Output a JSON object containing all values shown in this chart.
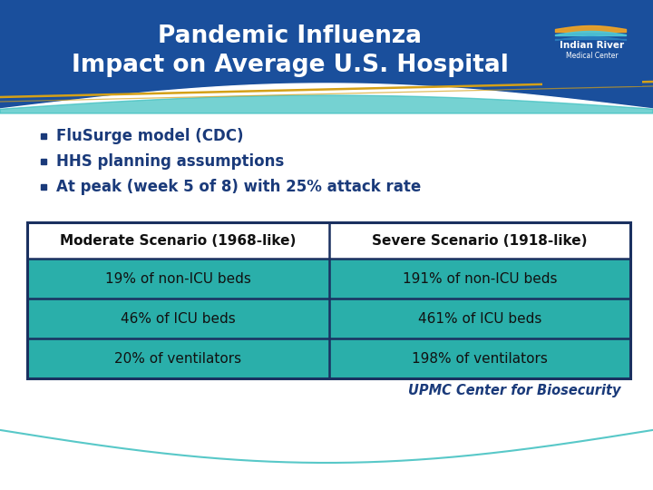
{
  "title_line1": "Pandemic Influenza",
  "title_line2": "Impact on Average U.S. Hospital",
  "title_bg_color": "#1A4F9C",
  "title_text_color": "#FFFFFF",
  "body_bg_color": "#FFFFFF",
  "wave_teal": "#3BBFBF",
  "wave_accent_color": "#D4A017",
  "bullets": [
    "FluSurge model (CDC)",
    "HHS planning assumptions",
    "At peak (week 5 of 8) with 25% attack rate"
  ],
  "bullet_text_color": "#1A3A7A",
  "table_header_row": [
    "Moderate Scenario (1968-like)",
    "Severe Scenario (1918-like)"
  ],
  "table_data_rows": [
    [
      "19% of non-ICU beds",
      "191% of non-ICU beds"
    ],
    [
      "46% of ICU beds",
      "461% of ICU beds"
    ],
    [
      "20% of ventilators",
      "198% of ventilators"
    ]
  ],
  "table_header_bg": "#FFFFFF",
  "table_cell_bg": "#2AAFAA",
  "table_border_color": "#1A3060",
  "table_header_text_color": "#111111",
  "table_cell_text_color": "#111111",
  "footer_text": "UPMC Center for Biosecurity",
  "footer_text_color": "#1A3A7A"
}
